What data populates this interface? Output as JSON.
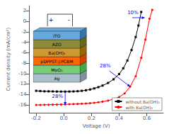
{
  "chart_data": {
    "type": "line",
    "xlabel": "Voltage (V)",
    "ylabel": "Current density (mA/cm²)",
    "xlim": [
      -0.25,
      0.72
    ],
    "ylim": [
      -17.5,
      3.0
    ],
    "xticks": [
      -0.2,
      {
        "value": 0.0,
        "label": "0.0"
      },
      0.2,
      0.4,
      0.6
    ],
    "yticks": [
      2,
      0,
      -2,
      -4,
      -6,
      -8,
      -10,
      -12,
      -14,
      -16
    ],
    "grid": false,
    "legend": "lower right",
    "series": [
      {
        "name": "without Ba(OH)₂",
        "color": "black",
        "marker": "square",
        "x": [
          -0.2,
          -0.17,
          -0.14,
          -0.11,
          -0.08,
          -0.05,
          -0.02,
          0.01,
          0.04,
          0.07,
          0.1,
          0.13,
          0.16,
          0.19,
          0.22,
          0.25,
          0.28,
          0.32,
          0.36,
          0.4,
          0.43,
          0.46,
          0.49,
          0.52,
          0.54,
          0.56
        ],
        "values": [
          -13.3,
          -13.35,
          -13.4,
          -13.4,
          -13.42,
          -13.44,
          -13.45,
          -13.45,
          -13.44,
          -13.42,
          -13.38,
          -13.3,
          -13.2,
          -13.05,
          -12.85,
          -12.6,
          -12.3,
          -11.8,
          -11.1,
          -10.1,
          -9.0,
          -7.5,
          -5.5,
          -3.0,
          -0.8,
          1.8
        ]
      },
      {
        "name": "with Ba(OH)₂",
        "color": "red",
        "marker": "circle",
        "x": [
          -0.2,
          -0.17,
          -0.14,
          -0.11,
          -0.08,
          -0.05,
          -0.02,
          0.01,
          0.04,
          0.07,
          0.1,
          0.13,
          0.16,
          0.19,
          0.22,
          0.25,
          0.28,
          0.32,
          0.36,
          0.4,
          0.44,
          0.48,
          0.52,
          0.56,
          0.59,
          0.62,
          0.64
        ],
        "values": [
          -16.0,
          -16.0,
          -15.98,
          -15.97,
          -15.95,
          -15.93,
          -15.92,
          -15.9,
          -15.88,
          -15.85,
          -15.82,
          -15.78,
          -15.73,
          -15.67,
          -15.6,
          -15.5,
          -15.38,
          -15.18,
          -14.9,
          -14.5,
          -13.8,
          -12.5,
          -10.5,
          -7.0,
          -3.5,
          0.5,
          2.2
        ]
      }
    ],
    "annotations": [
      {
        "text": "28%",
        "x": -0.085,
        "y": -14.8,
        "color": "blue",
        "arrow_from": [
          0.01,
          -13.45
        ],
        "arrow_to": [
          0.01,
          -16.0
        ]
      },
      {
        "text": "28%",
        "x": 0.26,
        "y": -9.0,
        "color": "blue",
        "arrow_from": [
          0.33,
          -9.5
        ],
        "arrow_to": [
          0.48,
          -12.5
        ]
      },
      {
        "text": "10%",
        "x": 0.46,
        "y": 1.1,
        "color": "blue",
        "arrow_from": [
          0.495,
          0.7
        ],
        "arrow_to": [
          0.585,
          0.7
        ]
      }
    ],
    "inset": {
      "layers": [
        {
          "label": "Ag",
          "color": "#aabfcc",
          "side_color": "#8090a0"
        },
        {
          "label": "MoO₃",
          "color": "#77cc77",
          "side_color": "#44aa44"
        },
        {
          "label": "pDPPST-J:PCBM",
          "color": "#ff6600",
          "side_color": "#cc4400"
        },
        {
          "label": "Ba(OH)₂",
          "color": "#cc9933",
          "side_color": "#996600"
        },
        {
          "label": "AZO",
          "color": "#8b8b3a",
          "side_color": "#666620"
        },
        {
          "label": "ITO",
          "color": "#66aadd",
          "side_color": "#3377aa"
        }
      ],
      "terminals": [
        "+",
        "-"
      ]
    }
  }
}
